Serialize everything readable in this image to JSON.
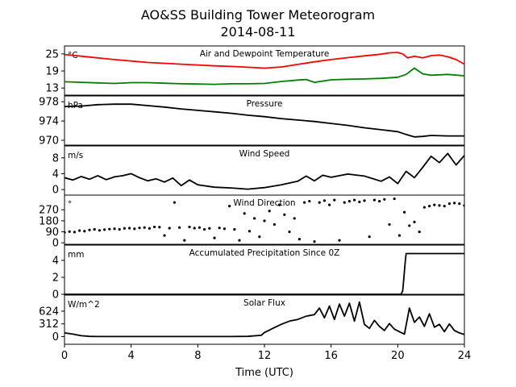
{
  "figure": {
    "title_line1": "AO&SS Building Tower Meteorogram",
    "title_line2": "2014-08-11",
    "xlabel": "Time (UTC)"
  },
  "chart_data": {
    "type": "line",
    "title": "AO&SS Building Tower Meteorogram 2014-08-11",
    "xlabel": "Time (UTC)",
    "xlim": [
      0,
      24
    ],
    "xticks": [
      0,
      4,
      8,
      12,
      16,
      20,
      24
    ],
    "panels": [
      {
        "id": "temperature",
        "title": "Air and Dewpoint Temperature",
        "unit": "°C",
        "ylim": [
          10.5,
          27.8
        ],
        "yticks": [
          13,
          19,
          25
        ],
        "series": [
          {
            "color": "#ff0000",
            "x": [
              0,
              1,
              2,
              3,
              4,
              5,
              6,
              7,
              8,
              9,
              10,
              11,
              12,
              13,
              14,
              15,
              16,
              17,
              18,
              19,
              19.5,
              20,
              20.3,
              20.6,
              21,
              21.5,
              22,
              22.5,
              23,
              23.5,
              24
            ],
            "y": [
              24.8,
              24.2,
              23.6,
              23.0,
              22.5,
              22.0,
              21.7,
              21.4,
              21.1,
              20.8,
              20.6,
              20.3,
              20.0,
              20.4,
              21.3,
              22.2,
              23.0,
              23.7,
              24.3,
              24.9,
              25.4,
              25.5,
              25.0,
              23.6,
              24.2,
              23.6,
              24.4,
              24.6,
              24.0,
              23.0,
              21.4
            ]
          },
          {
            "color": "#008000",
            "x": [
              0,
              1,
              2,
              3,
              4,
              5,
              6,
              7,
              8,
              9,
              10,
              11,
              12,
              13,
              14,
              14.5,
              15,
              16,
              17,
              18,
              19,
              20,
              20.5,
              21,
              21.5,
              22,
              23,
              24
            ],
            "y": [
              15.2,
              15.0,
              14.8,
              14.6,
              14.9,
              14.9,
              14.7,
              14.5,
              14.4,
              14.3,
              14.5,
              14.5,
              14.6,
              15.3,
              15.8,
              16.0,
              15.0,
              15.9,
              16.1,
              16.2,
              16.4,
              16.8,
              17.8,
              20.0,
              18.0,
              17.5,
              17.8,
              17.3
            ]
          }
        ]
      },
      {
        "id": "pressure",
        "title": "Pressure",
        "unit": "hPa",
        "ylim": [
          969.0,
          979.2
        ],
        "yticks": [
          970,
          974,
          978
        ],
        "series": [
          {
            "color": "#000000",
            "x": [
              0,
              1,
              2,
              3,
              4,
              5,
              6,
              7,
              8,
              9,
              10,
              11,
              12,
              13,
              14,
              15,
              16,
              17,
              18,
              19,
              20,
              20.5,
              21,
              21.5,
              22,
              23,
              24
            ],
            "y": [
              977.0,
              977.1,
              977.4,
              977.5,
              977.5,
              977.2,
              976.9,
              976.5,
              976.2,
              975.9,
              975.6,
              975.2,
              974.9,
              974.5,
              974.2,
              973.9,
              973.5,
              973.1,
              972.6,
              972.2,
              971.8,
              971.2,
              970.7,
              970.8,
              971.0,
              970.9,
              970.9
            ]
          }
        ]
      },
      {
        "id": "wind_speed",
        "title": "Wind Speed",
        "unit": "m/s",
        "ylim": [
          -1.4,
          11.0
        ],
        "yticks": [
          0,
          4,
          8
        ],
        "series": [
          {
            "color": "#000000",
            "x": [
              0,
              0.5,
              1,
              1.5,
              2,
              2.5,
              3,
              3.5,
              4,
              4.5,
              5,
              5.5,
              6,
              6.5,
              7,
              7.5,
              8,
              9,
              10,
              11,
              12,
              13,
              14,
              14.5,
              15,
              15.5,
              16,
              17,
              18,
              19,
              19.5,
              20,
              20.5,
              21,
              21.5,
              22,
              22.5,
              23,
              23.5,
              24
            ],
            "y": [
              3.0,
              2.4,
              3.3,
              2.6,
              3.5,
              2.5,
              3.2,
              3.5,
              4.0,
              3.0,
              2.2,
              2.7,
              1.9,
              2.9,
              1.0,
              2.4,
              1.2,
              0.6,
              0.4,
              0.1,
              0.5,
              1.2,
              2.1,
              3.4,
              2.2,
              3.6,
              3.1,
              3.9,
              3.4,
              2.1,
              3.2,
              1.5,
              4.6,
              3.0,
              5.6,
              8.4,
              6.8,
              9.1,
              6.2,
              8.6
            ]
          }
        ]
      },
      {
        "id": "wind_direction",
        "title": "Wind Direction",
        "unit": "°",
        "ylim": [
          -12,
          390
        ],
        "yticks": [
          0,
          90,
          180,
          270
        ],
        "series": [
          {
            "color": "#000000",
            "style": "scatter",
            "x": [
              0,
              0.3,
              0.6,
              0.9,
              1.2,
              1.5,
              1.8,
              2.1,
              2.4,
              2.7,
              3.0,
              3.3,
              3.6,
              3.9,
              4.2,
              4.5,
              4.8,
              5.1,
              5.4,
              5.7,
              6.0,
              6.3,
              6.6,
              6.9,
              7.2,
              7.5,
              7.8,
              8.1,
              8.4,
              8.7,
              9.0,
              9.3,
              9.6,
              9.9,
              10.2,
              10.5,
              10.8,
              11.1,
              11.4,
              11.7,
              12.0,
              12.3,
              12.6,
              12.9,
              13.2,
              13.5,
              13.8,
              14.1,
              14.4,
              14.7,
              15.0,
              15.3,
              15.6,
              15.9,
              16.2,
              16.5,
              16.8,
              17.1,
              17.4,
              17.7,
              18.0,
              18.3,
              18.6,
              18.9,
              19.2,
              19.5,
              19.8,
              20.1,
              20.4,
              20.7,
              21.0,
              21.3,
              21.6,
              21.9,
              22.2,
              22.5,
              22.8,
              23.1,
              23.4,
              23.7,
              24.0
            ],
            "y": [
              85,
              92,
              88,
              100,
              95,
              105,
              110,
              102,
              108,
              112,
              115,
              110,
              118,
              120,
              115,
              122,
              125,
              118,
              130,
              128,
              60,
              120,
              330,
              125,
              20,
              130,
              120,
              125,
              110,
              118,
              40,
              122,
              115,
              300,
              110,
              20,
              240,
              95,
              200,
              50,
              180,
              260,
              150,
              310,
              230,
              90,
              200,
              30,
              330,
              340,
              10,
              330,
              345,
              310,
              350,
              20,
              330,
              340,
              350,
              335,
              345,
              50,
              350,
              340,
              355,
              150,
              360,
              60,
              250,
              140,
              170,
              90,
              290,
              300,
              310,
              305,
              300,
              320,
              325,
              320,
              305
            ]
          }
        ]
      },
      {
        "id": "precipitation",
        "title": "Accumulated Precipitation Since 0Z",
        "unit": "mm",
        "ylim": [
          0,
          5.8
        ],
        "yticks": [
          0,
          2,
          4
        ],
        "series": [
          {
            "color": "#000000",
            "x": [
              0,
              20.2,
              20.3,
              20.45,
              20.5,
              24
            ],
            "y": [
              0,
              0,
              0.4,
              3.8,
              4.8,
              4.8
            ]
          }
        ]
      },
      {
        "id": "solar",
        "title": "Solar Flux",
        "unit": "W/m^2",
        "ylim": [
          -190,
          1020
        ],
        "yticks": [
          0,
          312,
          624
        ],
        "series": [
          {
            "color": "#000000",
            "x": [
              0,
              0.5,
              1,
              1.5,
              2,
              4,
              6,
              8,
              10,
              11,
              11.8,
              12,
              12.5,
              13,
              13.5,
              14,
              14.5,
              15,
              15.3,
              15.6,
              15.9,
              16.2,
              16.5,
              16.8,
              17.1,
              17.4,
              17.7,
              18.0,
              18.3,
              18.6,
              18.9,
              19.2,
              19.5,
              19.8,
              20.1,
              20.4,
              20.7,
              21.0,
              21.3,
              21.6,
              21.9,
              22.2,
              22.5,
              22.8,
              23.1,
              23.4,
              23.7,
              24.0
            ],
            "y": [
              90,
              60,
              20,
              5,
              0,
              0,
              0,
              0,
              0,
              5,
              30,
              100,
              200,
              300,
              380,
              420,
              500,
              540,
              700,
              460,
              750,
              420,
              800,
              500,
              820,
              380,
              850,
              300,
              200,
              400,
              250,
              150,
              320,
              180,
              120,
              60,
              700,
              350,
              480,
              250,
              560,
              230,
              300,
              120,
              310,
              150,
              90,
              50
            ]
          }
        ]
      }
    ]
  }
}
